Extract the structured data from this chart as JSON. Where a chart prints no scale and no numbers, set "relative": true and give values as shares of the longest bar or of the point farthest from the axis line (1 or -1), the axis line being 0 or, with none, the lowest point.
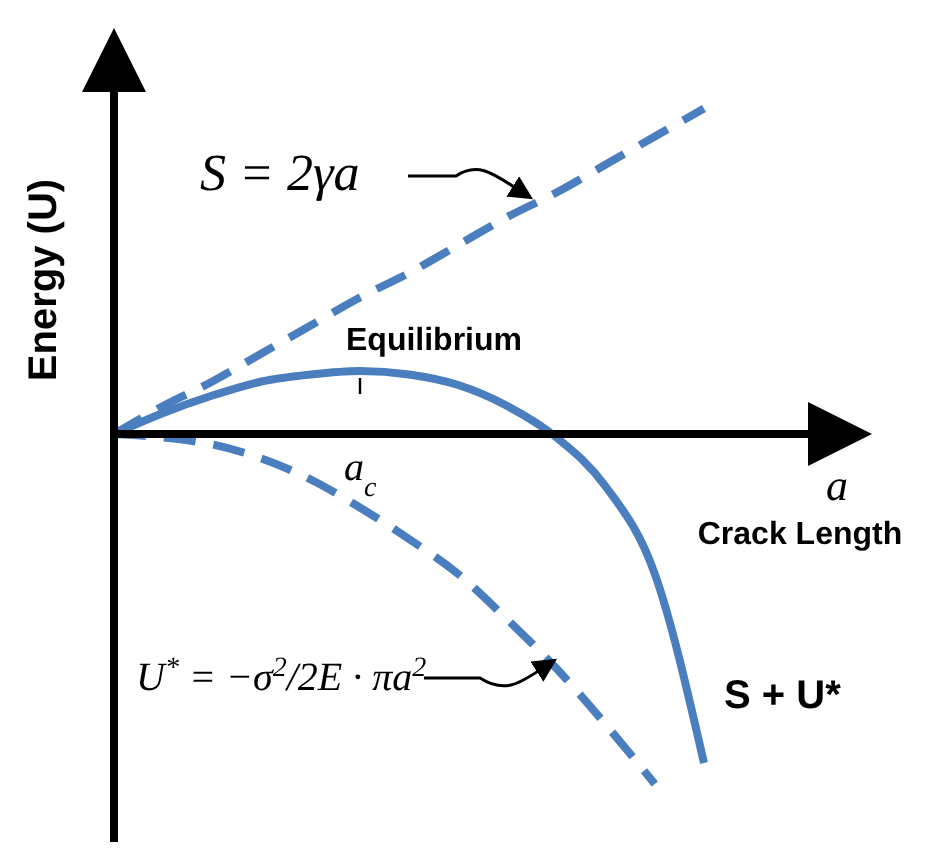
{
  "chart_data": {
    "type": "line",
    "relative": true,
    "xlabel": "Crack Length",
    "ylabel": "Energy (U)",
    "categories": [
      null,
      null,
      null,
      null,
      null,
      null,
      null,
      null,
      null,
      null,
      null,
      null,
      null
    ],
    "series": [
      {
        "color": "#4a7ebf",
        "line_style": "dashed",
        "values": [
          0,
          0.08,
          0.15,
          0.23,
          0.31,
          0.39,
          0.46,
          0.54,
          0.62,
          0.69,
          0.77,
          0.85,
          0.93
        ]
      },
      {
        "color": "#4a7ebf",
        "line_style": "dashed",
        "values": [
          0,
          -0.01,
          -0.03,
          -0.07,
          -0.13,
          -0.21,
          -0.3,
          -0.4,
          -0.53,
          -0.67,
          -0.83,
          -1.0,
          null
        ]
      },
      {
        "name": "S + U*",
        "color": "#4a7ebf",
        "line_style": "solid",
        "values": [
          0,
          0.06,
          0.11,
          0.15,
          0.17,
          0.18,
          0.17,
          0.14,
          0.08,
          -0.01,
          -0.15,
          -0.4,
          -0.94
        ]
      }
    ],
    "annotations": [
      "S = 2γa",
      "Equilibrium",
      "a$_{c}$",
      "a",
      "U$^{*}$ = −σ$^{2}$/2E · πa$^{2}$"
    ]
  }
}
